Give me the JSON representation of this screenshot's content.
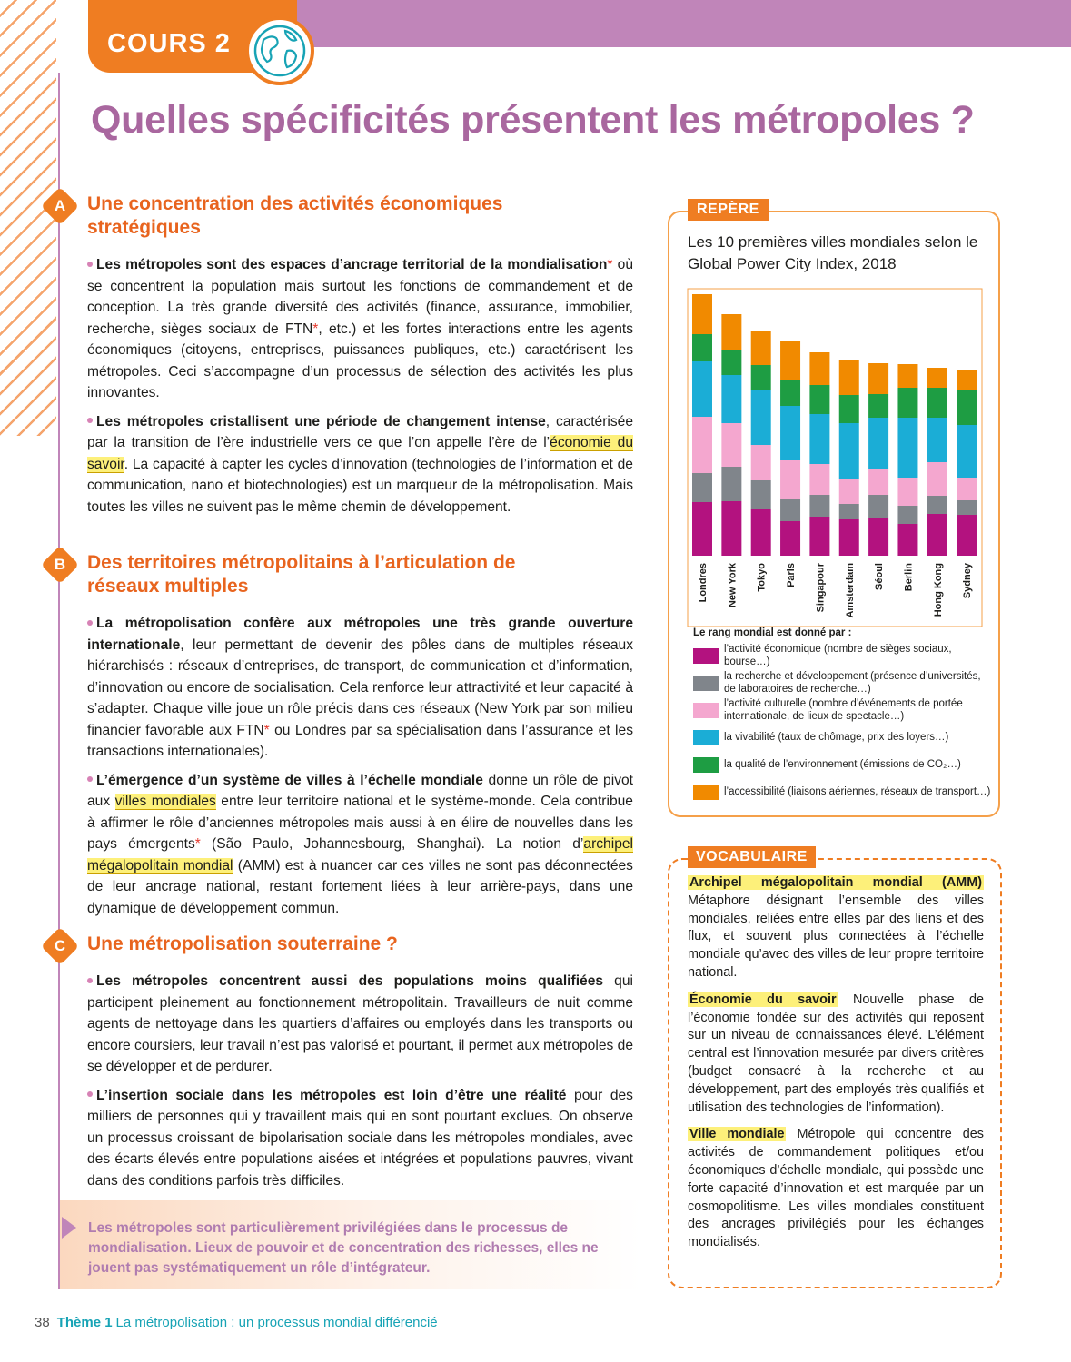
{
  "header": {
    "tab": "COURS 2",
    "title": "Quelles spécificités présentent les métropoles ?"
  },
  "sections": [
    {
      "letter": "A",
      "heading": "Une concentration des activités économiques stratégiques",
      "paragraphs": [
        [
          {
            "b": "Les métropoles sont des espaces d’ancrage territorial de la mondialisation"
          },
          {
            "s": "*"
          },
          {
            "t": " où se concentrent la population mais surtout les fonctions de commandement et de conception. La très grande diversité des activités (finance, assurance, immobilier, recherche, sièges sociaux de FTN"
          },
          {
            "s": "*"
          },
          {
            "t": ", etc.) et les fortes interactions entre les agents économiques (citoyens, entreprises, puissances publiques, etc.) caractérisent les métropoles. Ceci s’accompagne d’un processus de sélection des activités les plus innovantes."
          }
        ],
        [
          {
            "b": "Les métropoles cristallisent une période de changement intense"
          },
          {
            "t": ", caractérisée par la transition de l’ère industrielle vers ce que l’on appelle l’ère de l’"
          },
          {
            "h": "économie du savoir"
          },
          {
            "t": ". La capacité à capter les cycles d’innovation (technologies de l’information et de communication, nano et biotechnologies) est un marqueur de la métropolisation. Mais toutes les villes ne suivent pas le même chemin de développement."
          }
        ]
      ]
    },
    {
      "letter": "B",
      "heading": "Des territoires métropolitains à l’articulation de réseaux multiples",
      "paragraphs": [
        [
          {
            "b": "La métropolisation confère aux métropoles une très grande ouverture internationale"
          },
          {
            "t": ", leur permettant de devenir des pôles dans de multiples réseaux hiérarchisés : réseaux d’entreprises, de transport, de communication et d’information, d’innovation ou encore de socialisation. Cela renforce leur attractivité et leur capacité à s’adapter. Chaque ville joue un rôle précis dans ces réseaux (New York par son milieu financier favorable aux FTN"
          },
          {
            "s": "*"
          },
          {
            "t": " ou Londres par sa spécialisation dans l’assurance et les transactions internationales)."
          }
        ],
        [
          {
            "b": "L’émergence d’un système de villes à l’échelle mondiale"
          },
          {
            "t": " donne un rôle de pivot aux "
          },
          {
            "h": "villes mondiales"
          },
          {
            "t": " entre leur territoire national et le système-monde. Cela contribue à affirmer le rôle d’anciennes métropoles mais aussi à en élire de nouvelles dans les pays émergents"
          },
          {
            "s": "*"
          },
          {
            "t": " (São Paulo, Johannesbourg, Shanghai). La notion d’"
          },
          {
            "h": "archipel mégalopolitain mondial"
          },
          {
            "t": " (AMM) est à nuancer car ces villes ne sont pas déconnectées de leur ancrage national, restant fortement liées à leur arrière-pays, dans une dynamique de développement commun."
          }
        ]
      ]
    },
    {
      "letter": "C",
      "heading": "Une métropolisation souterraine ?",
      "paragraphs": [
        [
          {
            "b": "Les métropoles concentrent aussi des populations moins qualifiées"
          },
          {
            "t": " qui participent pleinement au fonctionnement métropolitain. Travailleurs de nuit comme agents de nettoyage dans les quartiers d’affaires ou employés dans les transports ou encore coursiers, leur travail n’est pas valorisé et pourtant, il permet aux métropoles de se développer et de perdurer."
          }
        ],
        [
          {
            "b": "L’insertion sociale dans les métropoles est loin d’être une réalité"
          },
          {
            "t": " pour des milliers de personnes qui y travaillent mais qui en sont pourtant exclues. On observe un processus croissant de bipolarisation sociale dans les métropoles mondiales, avec des écarts élevés entre populations aisées et intégrées et populations pauvres, vivant dans des conditions parfois très difficiles."
          }
        ]
      ]
    }
  ],
  "summary": "Les métropoles sont particulièrement privilégiées dans le processus de mondialisation. Lieux de pouvoir et de concentration des richesses, elles ne jouent pas systématiquement un rôle d’intégrateur.",
  "repere": "REPÈRE",
  "chart_data": {
    "type": "bar",
    "stacked": true,
    "title": "Les 10 premières villes mondiales selon le Global Power City Index, 2018",
    "legend_title": "Le rang mondial est donné par :",
    "categories": [
      "Londres",
      "New York",
      "Tokyo",
      "Paris",
      "Singapour",
      "Amsterdam",
      "Séoul",
      "Berlin",
      "Hong Kong",
      "Sydney"
    ],
    "ylim": [
      0,
      294
    ],
    "series": [
      {
        "name": "l’activité économique (nombre de sièges sociaux, bourse…)",
        "color": "#b3127f",
        "values": [
          59,
          60,
          51,
          38,
          43,
          40,
          41,
          35,
          46,
          45
        ]
      },
      {
        "name": "la recherche et développement (présence d’universités, de laboratoires de recherche…)",
        "color": "#80858b",
        "values": [
          32,
          38,
          32,
          24,
          24,
          17,
          26,
          20,
          20,
          16
        ]
      },
      {
        "name": "l’activité culturelle (nombre d’événements de portée internationale, de lieux de spectacle…)",
        "color": "#f4a7cf",
        "values": [
          62,
          48,
          39,
          43,
          34,
          27,
          28,
          31,
          37,
          25
        ]
      },
      {
        "name": "la vivabilité (taux de chômage, prix des loyers…)",
        "color": "#1badd6",
        "values": [
          61,
          53,
          61,
          60,
          55,
          62,
          57,
          66,
          49,
          58
        ]
      },
      {
        "name": "la qualité de l’environnement (émissions de CO₂…)",
        "color": "#1e9d43",
        "values": [
          30,
          28,
          27,
          29,
          32,
          31,
          26,
          33,
          33,
          38
        ]
      },
      {
        "name": "l’accessibilité (liaisons aériennes, réseaux de transport…)",
        "color": "#f18a00",
        "values": [
          44,
          39,
          38,
          43,
          36,
          39,
          34,
          26,
          22,
          23
        ]
      }
    ]
  },
  "vocabulary": {
    "label": "VOCABULAIRE",
    "entries": [
      {
        "term": "Archipel mégalopolitain mondial (AMM)",
        "definition": "Métaphore désignant l’ensemble des villes mondiales, reliées entre elles par des liens et des flux, et souvent plus connectées à l’échelle mondiale qu’avec des villes de leur propre territoire national."
      },
      {
        "term": "Économie du savoir",
        "definition": "Nouvelle phase de l’économie fondée sur des activités qui reposent sur un niveau de connaissances élevé. L’élément central est l’innovation mesurée par divers critères (budget consacré à la recherche et au développement, part des employés très qualifiés et utilisation des technologies de l’information)."
      },
      {
        "term": "Ville mondiale",
        "definition": "Métropole qui concentre des activités de commandement politiques et/ou économiques d’échelle mondiale, qui possède une forte capacité d’innovation et est marquée par un cosmopolitisme. Les villes mondiales constituent des ancrages privilégiés pour les échanges mondialisés."
      }
    ]
  },
  "footer": {
    "page": "38",
    "theme": "Thème 1",
    "title": "La métropolisation : un processus mondial différencié"
  }
}
